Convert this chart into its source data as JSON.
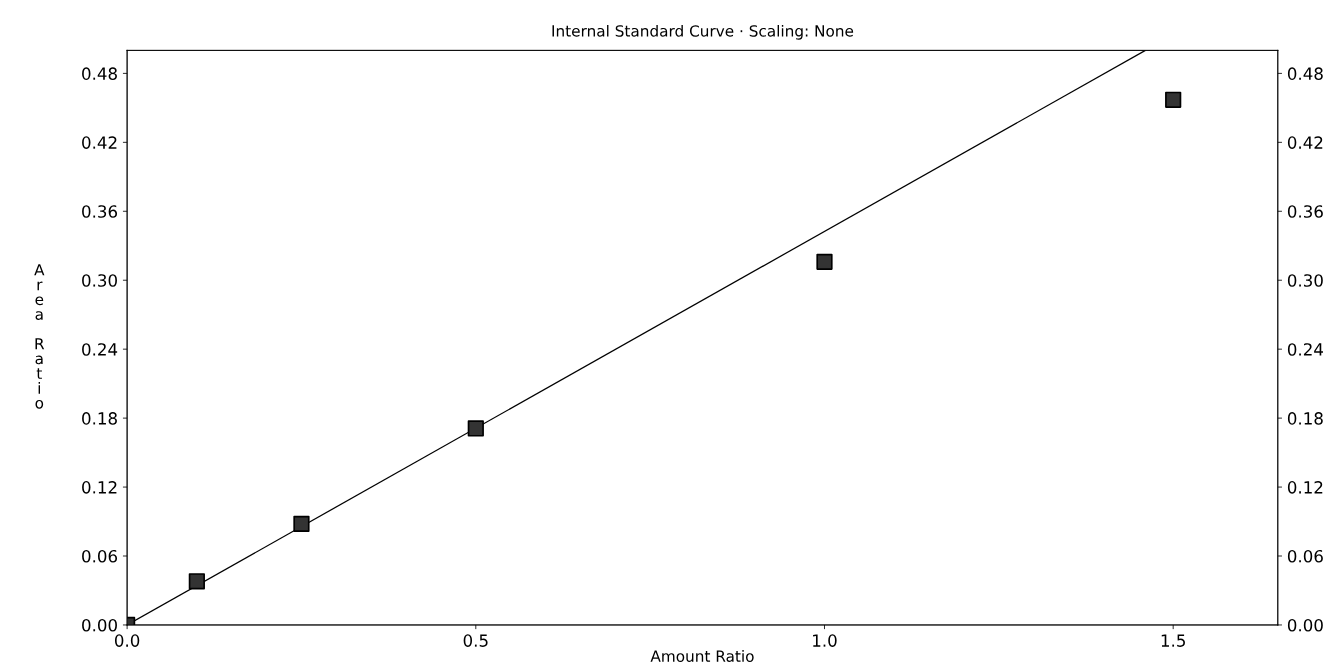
{
  "chart_data": {
    "type": "scatter",
    "title": "Internal Standard Curve · Scaling: None",
    "xlabel": "Amount Ratio",
    "ylabel": "Area Ratio",
    "series": [
      {
        "marker": "square",
        "color": "#333333",
        "x": [
          0.0,
          0.1,
          0.25,
          0.5,
          1.0,
          1.5
        ],
        "values": [
          0.0,
          0.038,
          0.088,
          0.171,
          0.316,
          0.457
        ]
      },
      {
        "type": "line",
        "color": "#000000",
        "x": [
          0.0,
          1.46
        ],
        "values": [
          0.0,
          0.5
        ]
      }
    ],
    "grid": false,
    "legend": false,
    "xlim": [
      0.0,
      1.65
    ],
    "xticks": [
      {
        "value": 0,
        "label": "0.0"
      },
      0.5,
      {
        "value": 1,
        "label": "1.0"
      },
      1.5
    ],
    "ylim": [
      0.0,
      0.5
    ],
    "yticks": [
      {
        "value": 0,
        "label": "0.00"
      },
      0.06,
      0.12,
      0.18,
      0.24,
      {
        "value": 0.3,
        "label": "0.30"
      },
      0.36,
      0.42,
      0.48
    ],
    "y2lim": [
      0.0,
      0.5
    ],
    "y2ticks": [
      {
        "value": 0,
        "label": "0.00"
      },
      0.06,
      0.12,
      0.18,
      0.24,
      {
        "value": 0.3,
        "label": "0.30"
      },
      0.36,
      0.42,
      0.48
    ]
  }
}
